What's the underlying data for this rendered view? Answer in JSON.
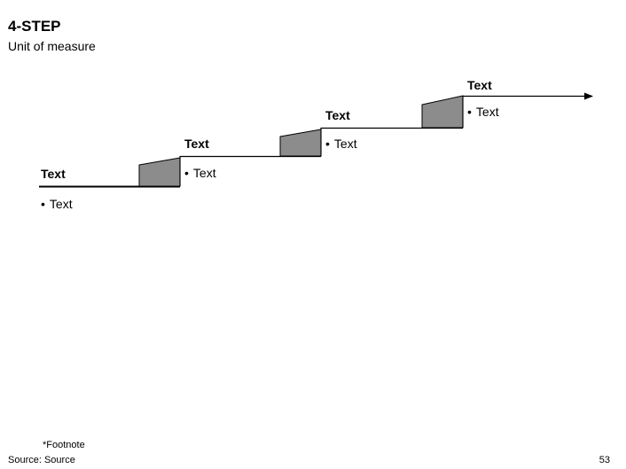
{
  "slide": {
    "title": "4-STEP",
    "subtitle": "Unit of measure"
  },
  "steps": [
    {
      "label": "Text",
      "bullet": "Text"
    },
    {
      "label": "Text",
      "bullet": "Text"
    },
    {
      "label": "Text",
      "bullet": "Text"
    },
    {
      "label": "Text",
      "bullet": "Text"
    }
  ],
  "bullet_glyph": "•",
  "footer": {
    "footnote": "*Footnote",
    "source": "Source: Source",
    "page_number": "53"
  },
  "colors": {
    "riser_fill": "#8c8c8c",
    "line": "#000000"
  }
}
